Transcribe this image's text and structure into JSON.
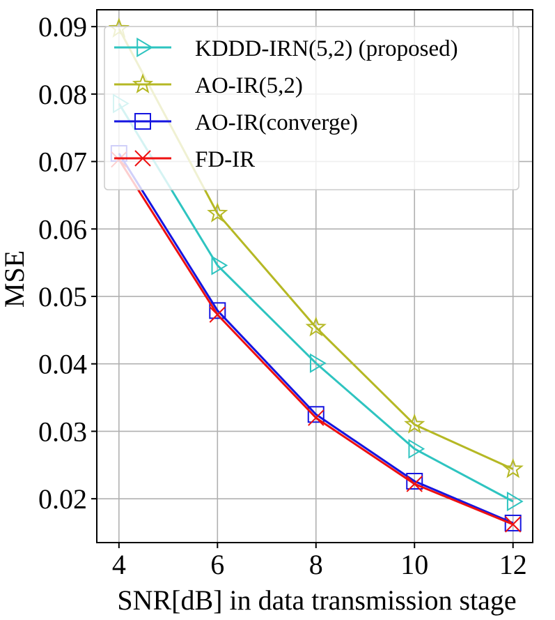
{
  "chart_data": {
    "type": "line",
    "title": "",
    "xlabel": "SNR[dB] in data transmission stage",
    "ylabel": "MSE",
    "x": [
      4,
      6,
      8,
      10,
      12
    ],
    "xticks": [
      4,
      6,
      8,
      10,
      12
    ],
    "yticks": [
      0.02,
      0.03,
      0.04,
      0.05,
      0.06,
      0.07,
      0.08,
      0.09
    ],
    "ytick_labels": [
      "0.02",
      "0.03",
      "0.04",
      "0.05",
      "0.06",
      "0.07",
      "0.08",
      "0.09"
    ],
    "xlim": [
      3.55,
      12.4
    ],
    "ylim": [
      0.0135,
      0.0925
    ],
    "grid": true,
    "legend_position": "top-right",
    "series": [
      {
        "name": "KDDD-IRN(5,2) (proposed)",
        "color": "#2ec4c0",
        "marker": "triangle-right",
        "values": [
          0.0786,
          0.0546,
          0.0401,
          0.0274,
          0.0196
        ]
      },
      {
        "name": "AO-IR(5,2)",
        "color": "#b5b824",
        "marker": "star",
        "values": [
          0.0897,
          0.0623,
          0.0454,
          0.031,
          0.0244
        ]
      },
      {
        "name": "AO-IR(converge)",
        "color": "#1515e0",
        "marker": "square",
        "values": [
          0.0712,
          0.0479,
          0.0325,
          0.0226,
          0.0164
        ]
      },
      {
        "name": "FD-IR",
        "color": "#ee1111",
        "marker": "x",
        "values": [
          0.0703,
          0.0473,
          0.032,
          0.0222,
          0.0162
        ]
      }
    ]
  }
}
